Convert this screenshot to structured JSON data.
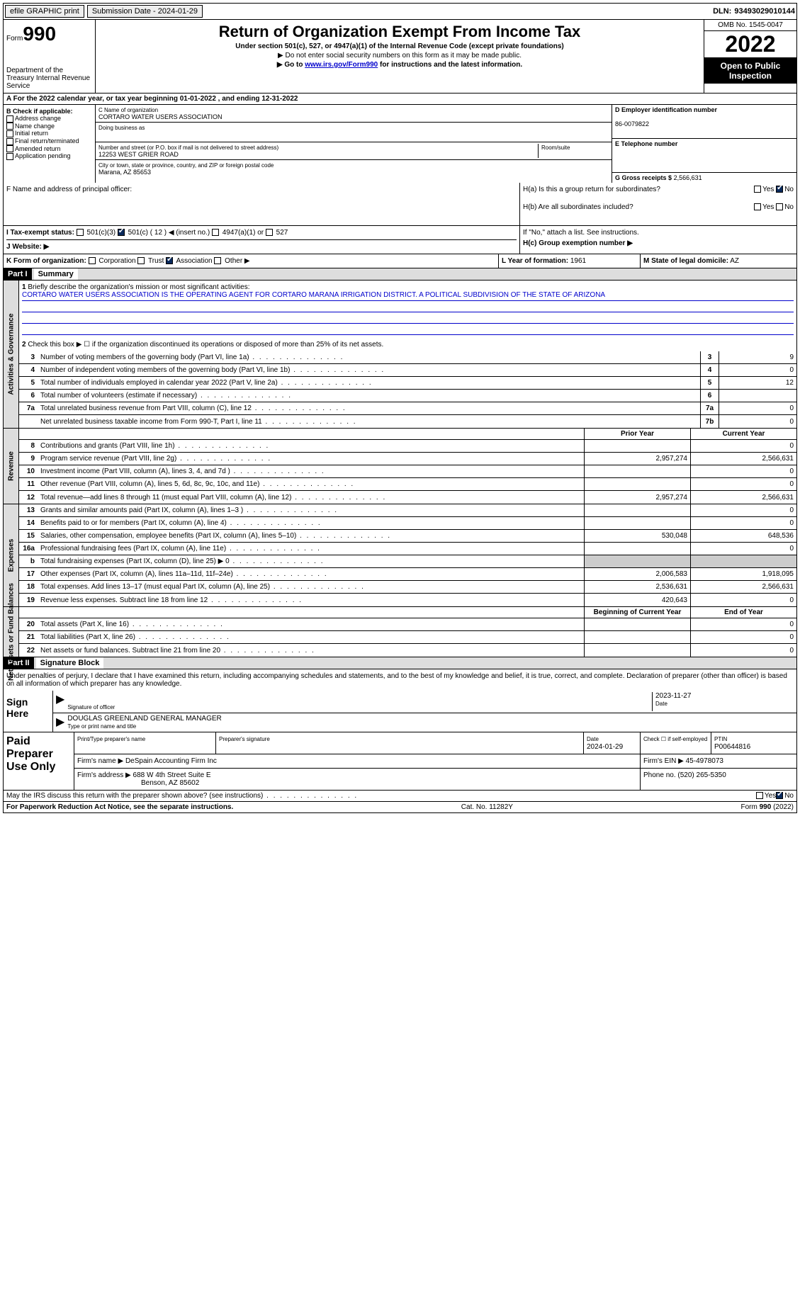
{
  "topbar": {
    "efile": "efile GRAPHIC print",
    "submission": "Submission Date - 2024-01-29",
    "dln_lbl": "DLN:",
    "dln": "93493029010144"
  },
  "head": {
    "form_word": "Form",
    "form_num": "990",
    "dept": "Department of the Treasury Internal Revenue Service",
    "title": "Return of Organization Exempt From Income Tax",
    "sub": "Under section 501(c), 527, or 4947(a)(1) of the Internal Revenue Code (except private foundations)",
    "note1": "▶ Do not enter social security numbers on this form as it may be made public.",
    "note2_pre": "▶ Go to ",
    "note2_link": "www.irs.gov/Form990",
    "note2_post": " for instructions and the latest information.",
    "omb": "OMB No. 1545-0047",
    "year": "2022",
    "inspect": "Open to Public Inspection"
  },
  "lineA": "A For the 2022 calendar year, or tax year beginning 01-01-2022    , and ending 12-31-2022",
  "B": {
    "hdr": "B Check if applicable:",
    "items": [
      "Address change",
      "Name change",
      "Initial return",
      "Final return/terminated",
      "Amended return",
      "Application pending"
    ]
  },
  "C": {
    "name_lbl": "C Name of organization",
    "name": "CORTARO WATER USERS ASSOCIATION",
    "dba_lbl": "Doing business as",
    "addr_lbl": "Number and street (or P.O. box if mail is not delivered to street address)",
    "room_lbl": "Room/suite",
    "addr": "12253 WEST GRIER ROAD",
    "city_lbl": "City or town, state or province, country, and ZIP or foreign postal code",
    "city": "Marana, AZ  85653"
  },
  "D": {
    "ein_lbl": "D Employer identification number",
    "ein": "86-0079822",
    "tel_lbl": "E Telephone number",
    "gross_lbl": "G Gross receipts $",
    "gross": "2,566,631"
  },
  "F": "F  Name and address of principal officer:",
  "H": {
    "a": "H(a)  Is this a group return for subordinates?",
    "b": "H(b)  Are all subordinates included?",
    "b_note": "If \"No,\" attach a list. See instructions.",
    "c": "H(c)  Group exemption number ▶",
    "yes": "Yes",
    "no": "No"
  },
  "I": {
    "lbl": "I  Tax-exempt status:",
    "o1": "501(c)(3)",
    "o2": "501(c) ( 12 ) ◀ (insert no.)",
    "o3": "4947(a)(1) or",
    "o4": "527"
  },
  "J": "J  Website: ▶",
  "K": {
    "lbl": "K Form of organization:",
    "o1": "Corporation",
    "o2": "Trust",
    "o3": "Association",
    "o4": "Other ▶"
  },
  "L": {
    "lbl": "L Year of formation:",
    "val": "1961"
  },
  "M": {
    "lbl": "M State of legal domicile:",
    "val": "AZ"
  },
  "part1": {
    "num": "Part I",
    "title": "Summary"
  },
  "p1": {
    "l1": "Briefly describe the organization's mission or most significant activities:",
    "mission": "CORTARO WATER USERS ASSOCIATION IS THE OPERATING AGENT FOR CORTARO MARANA IRRIGATION DISTRICT. A POLITICAL SUBDIVISION OF THE STATE OF ARIZONA",
    "l2": "Check this box ▶ ☐ if the organization discontinued its operations or disposed of more than 25% of its net assets.",
    "rows": [
      {
        "n": "3",
        "t": "Number of voting members of the governing body (Part VI, line 1a)",
        "b": "3",
        "v": "9"
      },
      {
        "n": "4",
        "t": "Number of independent voting members of the governing body (Part VI, line 1b)",
        "b": "4",
        "v": "0"
      },
      {
        "n": "5",
        "t": "Total number of individuals employed in calendar year 2022 (Part V, line 2a)",
        "b": "5",
        "v": "12"
      },
      {
        "n": "6",
        "t": "Total number of volunteers (estimate if necessary)",
        "b": "6",
        "v": ""
      },
      {
        "n": "7a",
        "t": "Total unrelated business revenue from Part VIII, column (C), line 12",
        "b": "7a",
        "v": "0"
      },
      {
        "n": "",
        "t": "Net unrelated business taxable income from Form 990-T, Part I, line 11",
        "b": "7b",
        "v": "0"
      }
    ]
  },
  "hdrPY": "Prior Year",
  "hdrCY": "Current Year",
  "rev": {
    "label": "Revenue",
    "rows": [
      {
        "n": "8",
        "t": "Contributions and grants (Part VIII, line 1h)",
        "py": "",
        "cy": "0"
      },
      {
        "n": "9",
        "t": "Program service revenue (Part VIII, line 2g)",
        "py": "2,957,274",
        "cy": "2,566,631"
      },
      {
        "n": "10",
        "t": "Investment income (Part VIII, column (A), lines 3, 4, and 7d )",
        "py": "",
        "cy": "0"
      },
      {
        "n": "11",
        "t": "Other revenue (Part VIII, column (A), lines 5, 6d, 8c, 9c, 10c, and 11e)",
        "py": "",
        "cy": "0"
      },
      {
        "n": "12",
        "t": "Total revenue—add lines 8 through 11 (must equal Part VIII, column (A), line 12)",
        "py": "2,957,274",
        "cy": "2,566,631"
      }
    ]
  },
  "exp": {
    "label": "Expenses",
    "rows": [
      {
        "n": "13",
        "t": "Grants and similar amounts paid (Part IX, column (A), lines 1–3 )",
        "py": "",
        "cy": "0"
      },
      {
        "n": "14",
        "t": "Benefits paid to or for members (Part IX, column (A), line 4)",
        "py": "",
        "cy": "0"
      },
      {
        "n": "15",
        "t": "Salaries, other compensation, employee benefits (Part IX, column (A), lines 5–10)",
        "py": "530,048",
        "cy": "648,536"
      },
      {
        "n": "16a",
        "t": "Professional fundraising fees (Part IX, column (A), line 11e)",
        "py": "",
        "cy": "0"
      },
      {
        "n": "b",
        "t": "Total fundraising expenses (Part IX, column (D), line 25) ▶ 0",
        "py": "SHADED",
        "cy": "SHADED"
      },
      {
        "n": "17",
        "t": "Other expenses (Part IX, column (A), lines 11a–11d, 11f–24e)",
        "py": "2,006,583",
        "cy": "1,918,095"
      },
      {
        "n": "18",
        "t": "Total expenses. Add lines 13–17 (must equal Part IX, column (A), line 25)",
        "py": "2,536,631",
        "cy": "2,566,631"
      },
      {
        "n": "19",
        "t": "Revenue less expenses. Subtract line 18 from line 12",
        "py": "420,643",
        "cy": "0"
      }
    ]
  },
  "hdrBY": "Beginning of Current Year",
  "hdrEY": "End of Year",
  "na": {
    "label": "Net Assets or Fund Balances",
    "rows": [
      {
        "n": "20",
        "t": "Total assets (Part X, line 16)",
        "py": "",
        "cy": "0"
      },
      {
        "n": "21",
        "t": "Total liabilities (Part X, line 26)",
        "py": "",
        "cy": "0"
      },
      {
        "n": "22",
        "t": "Net assets or fund balances. Subtract line 21 from line 20",
        "py": "",
        "cy": "0"
      }
    ]
  },
  "part2": {
    "num": "Part II",
    "title": "Signature Block"
  },
  "sig": {
    "perjury": "Under penalties of perjury, I declare that I have examined this return, including accompanying schedules and statements, and to the best of my knowledge and belief, it is true, correct, and complete. Declaration of preparer (other than officer) is based on all information of which preparer has any knowledge.",
    "sign_here": "Sign Here",
    "sig_officer": "Signature of officer",
    "date": "2023-11-27",
    "date_lbl": "Date",
    "officer": "DOUGLAS GREENLAND  GENERAL MANAGER",
    "type_name": "Type or print name and title"
  },
  "prep": {
    "hdr": "Paid Preparer Use Only",
    "c1": "Print/Type preparer's name",
    "c2": "Preparer's signature",
    "c3": "Date",
    "c3v": "2024-01-29",
    "c4": "Check ☐ if self-employed",
    "c5": "PTIN",
    "c5v": "P00644816",
    "firm_lbl": "Firm's name    ▶",
    "firm": "DeSpain Accounting Firm Inc",
    "ein_lbl": "Firm's EIN ▶",
    "ein": "45-4978073",
    "addr_lbl": "Firm's address ▶",
    "addr": "688 W 4th Street Suite E",
    "city": "Benson, AZ  85602",
    "phone_lbl": "Phone no.",
    "phone": "(520) 265-5350"
  },
  "discuss": "May the IRS discuss this return with the preparer shown above? (see instructions)",
  "foot": {
    "l": "For Paperwork Reduction Act Notice, see the separate instructions.",
    "c": "Cat. No. 11282Y",
    "r": "Form 990 (2022)"
  },
  "labels": {
    "activities": "Activities & Governance"
  }
}
